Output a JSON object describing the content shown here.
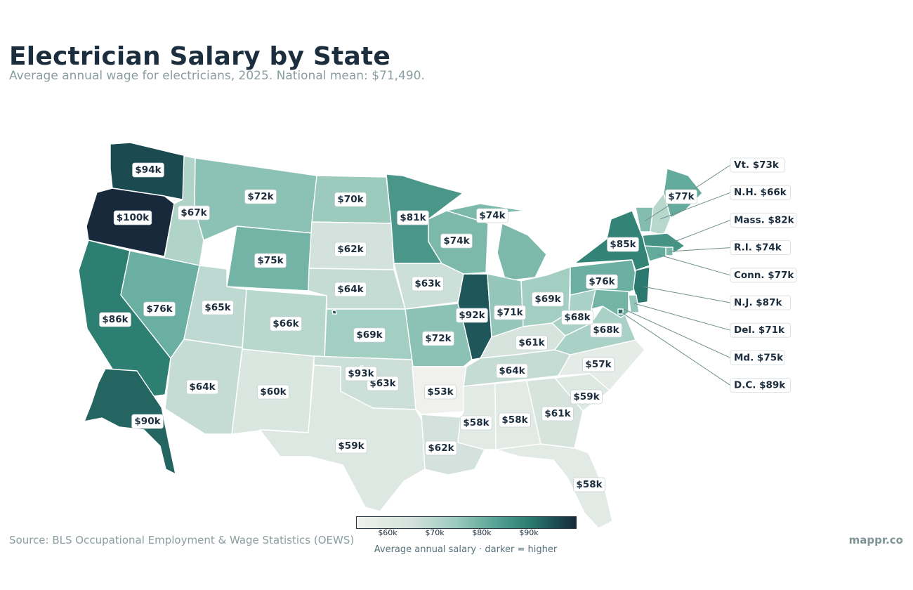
{
  "header": {
    "title": "Electrician Salary by State",
    "subtitle": "Average annual wage for electricians, 2025. National mean: $71,490."
  },
  "footer": {
    "source": "Source: BLS Occupational Employment & Wage Statistics (OEWS)",
    "brand": "mappr.co"
  },
  "legend": {
    "ticks": [
      "$60k",
      "$70k",
      "$80k",
      "$90k"
    ],
    "tick_values": [
      60,
      70,
      80,
      90
    ],
    "range": [
      54,
      101
    ],
    "caption": "Average annual salary  ·  darker = higher"
  },
  "colors": {
    "lowest": "#f0f1ed",
    "low": "#d3e2dc",
    "mid": "#9ccbbe",
    "mid_high": "#5ba698",
    "high": "#2d7f72",
    "higher": "#1d4f55",
    "highest": "#18293c"
  },
  "states": [
    {
      "abbr": "WA",
      "label": "$94k",
      "value": 94
    },
    {
      "abbr": "OR",
      "label": "$100k",
      "value": 100
    },
    {
      "abbr": "CA",
      "label": "$86k",
      "value": 86
    },
    {
      "abbr": "ID",
      "label": "$67k",
      "value": 67
    },
    {
      "abbr": "NV",
      "label": "$76k",
      "value": 76
    },
    {
      "abbr": "MT",
      "label": "$72k",
      "value": 72
    },
    {
      "abbr": "WY",
      "label": "$75k",
      "value": 75
    },
    {
      "abbr": "UT",
      "label": "$65k",
      "value": 65
    },
    {
      "abbr": "AZ",
      "label": "$64k",
      "value": 64
    },
    {
      "abbr": "CO",
      "label": "$66k",
      "value": 66
    },
    {
      "abbr": "NM",
      "label": "$60k",
      "value": 60
    },
    {
      "abbr": "ND",
      "label": "$70k",
      "value": 70
    },
    {
      "abbr": "SD",
      "label": "$62k",
      "value": 62
    },
    {
      "abbr": "NE",
      "label": "$64k",
      "value": 64
    },
    {
      "abbr": "KS",
      "label": "$69k",
      "value": 69
    },
    {
      "abbr": "OK",
      "label": "$63k",
      "value": 63
    },
    {
      "abbr": "TX",
      "label": "$59k",
      "value": 59
    },
    {
      "abbr": "MN",
      "label": "$81k",
      "value": 81
    },
    {
      "abbr": "IA",
      "label": "$63k",
      "value": 63
    },
    {
      "abbr": "MO",
      "label": "$72k",
      "value": 72
    },
    {
      "abbr": "AR",
      "label": "$53k",
      "value": 53
    },
    {
      "abbr": "LA",
      "label": "$62k",
      "value": 62
    },
    {
      "abbr": "WI",
      "label": "$74k",
      "value": 74
    },
    {
      "abbr": "IL",
      "label": "$92k",
      "value": 92
    },
    {
      "abbr": "MI",
      "label": "$74k",
      "value": 74
    },
    {
      "abbr": "IN",
      "label": "$71k",
      "value": 71
    },
    {
      "abbr": "OH",
      "label": "$69k",
      "value": 69
    },
    {
      "abbr": "KY",
      "label": "$61k",
      "value": 61
    },
    {
      "abbr": "TN",
      "label": "$64k",
      "value": 64
    },
    {
      "abbr": "MS",
      "label": "$58k",
      "value": 58
    },
    {
      "abbr": "AL",
      "label": "$58k",
      "value": 58
    },
    {
      "abbr": "GA",
      "label": "$61k",
      "value": 61
    },
    {
      "abbr": "FL",
      "label": "$58k",
      "value": 58
    },
    {
      "abbr": "SC",
      "label": "$59k",
      "value": 59
    },
    {
      "abbr": "NC",
      "label": "$57k",
      "value": 57
    },
    {
      "abbr": "VA",
      "label": "$68k",
      "value": 68
    },
    {
      "abbr": "WV",
      "label": "$68k",
      "value": 68
    },
    {
      "abbr": "PA",
      "label": "$76k",
      "value": 76
    },
    {
      "abbr": "NY",
      "label": "$85k",
      "value": 85
    },
    {
      "abbr": "ME",
      "label": "$77k",
      "value": 77
    },
    {
      "abbr": "AK",
      "label": "$90k",
      "value": 90
    },
    {
      "abbr": "HI",
      "label": "$93k",
      "value": 93
    }
  ],
  "small_states": [
    {
      "abbr": "VT",
      "label": "Vt. $73k",
      "value": 73
    },
    {
      "abbr": "NH",
      "label": "N.H. $66k",
      "value": 66
    },
    {
      "abbr": "MA",
      "label": "Mass. $82k",
      "value": 82
    },
    {
      "abbr": "RI",
      "label": "R.I. $74k",
      "value": 74
    },
    {
      "abbr": "CT",
      "label": "Conn. $77k",
      "value": 77
    },
    {
      "abbr": "NJ",
      "label": "N.J. $87k",
      "value": 87
    },
    {
      "abbr": "DE",
      "label": "Del. $71k",
      "value": 71
    },
    {
      "abbr": "MD",
      "label": "Md. $75k",
      "value": 75
    },
    {
      "abbr": "DC",
      "label": "D.C. $89k",
      "value": 89
    }
  ]
}
